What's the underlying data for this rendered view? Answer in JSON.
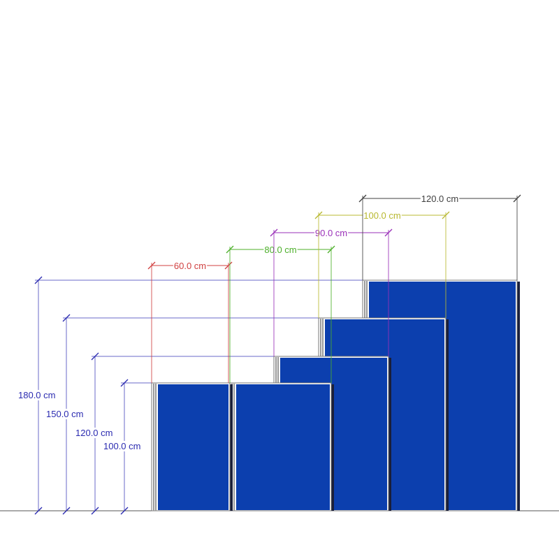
{
  "panels": [
    {
      "width_label": "60.0 cm",
      "height_label": "100.0 cm",
      "dim_color": "#d04040"
    },
    {
      "width_label": "80.0 cm",
      "height_label": "100.0 cm",
      "dim_color": "#4caf2a"
    },
    {
      "width_label": "90.0 cm",
      "height_label": "120.0 cm",
      "dim_color": "#9a30b8"
    },
    {
      "width_label": "100.0 cm",
      "height_label": "150.0 cm",
      "dim_color": "#b8b830"
    },
    {
      "width_label": "120.0 cm",
      "height_label": "180.0 cm",
      "dim_color": "#404040"
    }
  ],
  "heights": [
    "180.0 cm",
    "150.0 cm",
    "120.0 cm",
    "100.0 cm"
  ],
  "colors": {
    "panel_fabric": "#0c3fae",
    "height_dim": "#2a2ab0",
    "height_line": "#6a6ac8",
    "frame": "#c8c8c8"
  }
}
